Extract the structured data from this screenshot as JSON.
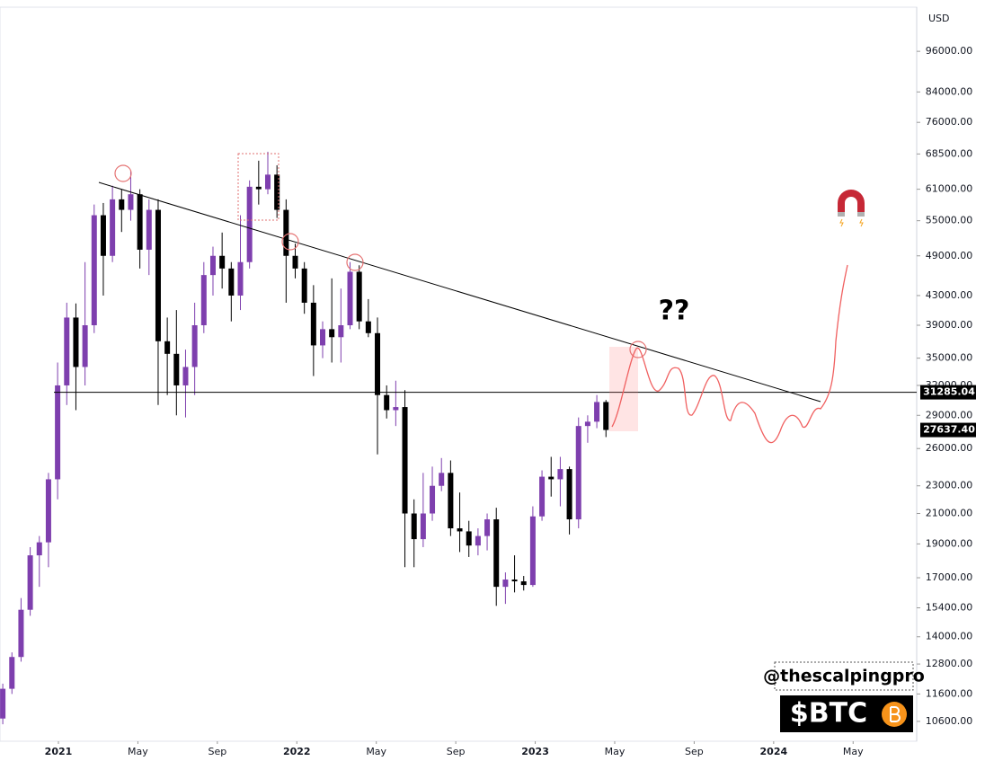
{
  "chart_data": {
    "type": "candlestick",
    "y_unit": "USD",
    "log_scale": true,
    "ylim": [
      9930,
      111000
    ],
    "xlim": [
      -2.94,
      43.2
    ],
    "yticks": [
      {
        "value": 10600,
        "label": "10600.00"
      },
      {
        "value": 11600,
        "label": "11600.00"
      },
      {
        "value": 12800,
        "label": "12800.00"
      },
      {
        "value": 14000,
        "label": "14000.00"
      },
      {
        "value": 15400,
        "label": "15400.00"
      },
      {
        "value": 17000,
        "label": "17000.00"
      },
      {
        "value": 19000,
        "label": "19000.00"
      },
      {
        "value": 21000,
        "label": "21000.00"
      },
      {
        "value": 23000,
        "label": "23000.00"
      },
      {
        "value": 26000,
        "label": "26000.00"
      },
      {
        "value": 29000,
        "label": "29000.00"
      },
      {
        "value": 32000,
        "label": "32000.00"
      },
      {
        "value": 35000,
        "label": "35000.00"
      },
      {
        "value": 39000,
        "label": "39000.00"
      },
      {
        "value": 43000,
        "label": "43000.00"
      },
      {
        "value": 49000,
        "label": "49000.00"
      },
      {
        "value": 55000,
        "label": "55000.00"
      },
      {
        "value": 61000,
        "label": "61000.00"
      },
      {
        "value": 68500,
        "label": "68500.00"
      },
      {
        "value": 76000,
        "label": "76000.00"
      },
      {
        "value": 84000,
        "label": "84000.00"
      },
      {
        "value": 96000,
        "label": "96000.00"
      }
    ],
    "xticks": [
      {
        "value": 0,
        "label": "2021"
      },
      {
        "value": 4,
        "label": "May"
      },
      {
        "value": 8,
        "label": "Sep"
      },
      {
        "value": 12,
        "label": "2022"
      },
      {
        "value": 16,
        "label": "May"
      },
      {
        "value": 20,
        "label": "Sep"
      },
      {
        "value": 24,
        "label": "2023"
      },
      {
        "value": 28,
        "label": "May"
      },
      {
        "value": 32,
        "label": "Sep"
      },
      {
        "value": 36,
        "label": "2024"
      },
      {
        "value": 40,
        "label": "May"
      }
    ],
    "up_color": "#7e3fae",
    "down_color": "#000000",
    "x": [
      -2.8,
      -2.34,
      -1.88,
      -1.42,
      -0.96,
      -0.5,
      -0.04,
      0.42,
      0.88,
      1.34,
      1.8,
      2.26,
      2.72,
      3.18,
      3.64,
      4.1,
      4.56,
      5.02,
      5.48,
      5.94,
      6.4,
      6.86,
      7.32,
      7.78,
      8.24,
      8.7,
      9.16,
      9.62,
      10.08,
      10.54,
      11,
      11.46,
      11.92,
      12.38,
      12.84,
      13.3,
      13.76,
      14.22,
      14.68,
      15.14,
      15.6,
      16.06,
      16.52,
      16.98,
      17.44,
      17.9,
      18.36,
      18.82,
      19.28,
      19.74,
      20.2,
      20.66,
      21.12,
      21.58,
      22.04,
      22.5,
      22.96,
      23.42,
      23.88,
      24.34,
      24.8,
      25.26,
      25.72,
      26.18,
      26.64,
      27.1,
      27.56
    ],
    "open": [
      10700,
      11800,
      13100,
      15300,
      18300,
      19100,
      23500,
      32000,
      40000,
      34000,
      39000,
      56000,
      49000,
      59000,
      57000,
      60000,
      50000,
      57000,
      37000,
      35500,
      32000,
      34000,
      39000,
      46000,
      49000,
      47000,
      43000,
      48000,
      61500,
      61000,
      64000,
      57000,
      49000,
      47000,
      42000,
      36500,
      38500,
      37500,
      39000,
      46500,
      39500,
      38000,
      31000,
      29500,
      29800,
      21000,
      19300,
      21000,
      23000,
      24000,
      20000,
      19800,
      18900,
      19500,
      20600,
      16500,
      16900,
      16800,
      16600,
      20800,
      23700,
      23500,
      24300,
      20600,
      28000,
      28400,
      30300
    ],
    "high": [
      12000,
      13300,
      15900,
      18800,
      19500,
      24000,
      34500,
      42000,
      41900,
      48000,
      58000,
      58300,
      61700,
      61000,
      64800,
      61000,
      59000,
      59000,
      40000,
      41000,
      36000,
      42000,
      48000,
      50500,
      52900,
      48000,
      56000,
      62800,
      67000,
      69000,
      66000,
      59000,
      51000,
      48000,
      44500,
      39500,
      45500,
      44000,
      48000,
      47500,
      42500,
      40000,
      32000,
      32500,
      31500,
      22000,
      24000,
      24500,
      25200,
      25000,
      22500,
      20500,
      20000,
      21000,
      21400,
      17300,
      18300,
      17100,
      21500,
      24200,
      25300,
      25300,
      24500,
      28800,
      29000,
      31000,
      30500
    ],
    "low": [
      10500,
      11600,
      12900,
      15000,
      16500,
      17600,
      22000,
      30000,
      29500,
      32000,
      38000,
      43000,
      48000,
      53000,
      55000,
      47000,
      46000,
      30000,
      31000,
      29000,
      28800,
      31000,
      38000,
      43000,
      44000,
      39500,
      41000,
      47000,
      58000,
      60000,
      55500,
      42000,
      45500,
      40500,
      33000,
      35000,
      34500,
      34500,
      38500,
      38500,
      37500,
      25500,
      28700,
      28000,
      17600,
      17600,
      18800,
      20500,
      22600,
      19500,
      18500,
      18200,
      18300,
      18600,
      15500,
      15600,
      16200,
      16300,
      16500,
      20500,
      22200,
      21500,
      19600,
      20000,
      26500,
      27800,
      27000
    ],
    "close": [
      11800,
      13100,
      15300,
      18300,
      19100,
      23500,
      32000,
      40000,
      34000,
      39000,
      56000,
      49000,
      59000,
      57000,
      60000,
      50000,
      57000,
      37000,
      35500,
      32000,
      34000,
      39000,
      46000,
      49000,
      47000,
      43000,
      48000,
      61500,
      61000,
      64000,
      57000,
      49000,
      47000,
      42000,
      36500,
      38500,
      37500,
      39000,
      46500,
      39500,
      38000,
      31000,
      29500,
      29800,
      21000,
      19300,
      21000,
      23000,
      24000,
      20000,
      19800,
      18900,
      19500,
      20600,
      16500,
      16900,
      16800,
      16600,
      20800,
      23700,
      23500,
      24300,
      20600,
      28000,
      28400,
      30300,
      27637.4
    ],
    "level": 31285.04,
    "current_price": {
      "value": 27637.4,
      "label": "27637.40"
    },
    "annotation": "??",
    "watermark": "@thescalpingpro",
    "ticker": "$BTC"
  }
}
